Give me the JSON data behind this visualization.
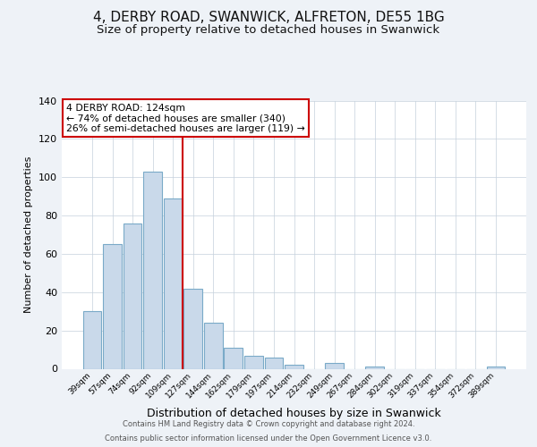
{
  "title": "4, DERBY ROAD, SWANWICK, ALFRETON, DE55 1BG",
  "subtitle": "Size of property relative to detached houses in Swanwick",
  "xlabel": "Distribution of detached houses by size in Swanwick",
  "ylabel": "Number of detached properties",
  "bar_labels": [
    "39sqm",
    "57sqm",
    "74sqm",
    "92sqm",
    "109sqm",
    "127sqm",
    "144sqm",
    "162sqm",
    "179sqm",
    "197sqm",
    "214sqm",
    "232sqm",
    "249sqm",
    "267sqm",
    "284sqm",
    "302sqm",
    "319sqm",
    "337sqm",
    "354sqm",
    "372sqm",
    "389sqm"
  ],
  "bar_values": [
    30,
    65,
    76,
    103,
    89,
    42,
    24,
    11,
    7,
    6,
    2,
    0,
    3,
    0,
    1,
    0,
    0,
    0,
    0,
    0,
    1
  ],
  "bar_color": "#c9d9ea",
  "bar_edge_color": "#7aaac8",
  "vline_color": "#cc0000",
  "ylim": [
    0,
    140
  ],
  "yticks": [
    0,
    20,
    40,
    60,
    80,
    100,
    120,
    140
  ],
  "annotation_title": "4 DERBY ROAD: 124sqm",
  "annotation_line1": "← 74% of detached houses are smaller (340)",
  "annotation_line2": "26% of semi-detached houses are larger (119) →",
  "annotation_box_color": "#ffffff",
  "annotation_box_edgecolor": "#cc0000",
  "footer_line1": "Contains HM Land Registry data © Crown copyright and database right 2024.",
  "footer_line2": "Contains public sector information licensed under the Open Government Licence v3.0.",
  "background_color": "#eef2f7",
  "plot_bg_color": "#ffffff",
  "title_fontsize": 11,
  "subtitle_fontsize": 9.5
}
